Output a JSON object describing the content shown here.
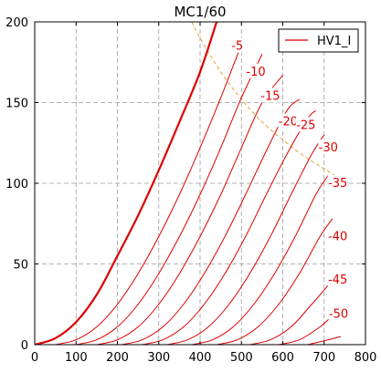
{
  "chart_data": {
    "type": "line",
    "title": "MC1/60",
    "xlabel": "",
    "ylabel": "",
    "xlim": [
      0,
      800
    ],
    "ylim": [
      0,
      200
    ],
    "xticks": [
      0,
      100,
      200,
      300,
      400,
      500,
      600,
      700,
      800
    ],
    "yticks": [
      0,
      50,
      100,
      150,
      200
    ],
    "grid": true,
    "legend": {
      "position": "top-right",
      "entries": [
        "HV1_I"
      ]
    },
    "colors": {
      "curves": "#dd0000",
      "power_limit": "#e8a030",
      "axes": "#000000",
      "grid": "#9a9a9a"
    },
    "series": [
      {
        "label": "",
        "x": [
          0,
          50,
          100,
          150,
          200,
          250,
          300,
          350,
          400,
          440
        ],
        "y": [
          0,
          4,
          14,
          31,
          55,
          80,
          108,
          138,
          169,
          200
        ]
      },
      {
        "label": "-5",
        "x": [
          50,
          100,
          150,
          200,
          250,
          300,
          350,
          400,
          450,
          500
        ],
        "y": [
          0,
          3,
          11,
          25,
          44,
          67,
          93,
          122,
          153,
          186
        ]
      },
      {
        "label": "-10",
        "x": [
          100,
          150,
          200,
          250,
          300,
          350,
          400,
          450,
          500,
          550
        ],
        "y": [
          0,
          3,
          11,
          25,
          44,
          67,
          93,
          122,
          153,
          180
        ]
      },
      {
        "label": "-15",
        "x": [
          150,
          200,
          250,
          300,
          350,
          400,
          450,
          500,
          550,
          600
        ],
        "y": [
          0,
          3,
          11,
          25,
          44,
          67,
          93,
          122,
          150,
          167
        ]
      },
      {
        "label": "-20",
        "x": [
          210,
          260,
          310,
          360,
          410,
          460,
          510,
          560,
          610,
          640
        ],
        "y": [
          0,
          3,
          11,
          25,
          44,
          67,
          93,
          120,
          145,
          152
        ]
      },
      {
        "label": "-25",
        "x": [
          260,
          310,
          360,
          410,
          460,
          510,
          560,
          610,
          660,
          680
        ],
        "y": [
          0,
          3,
          11,
          25,
          44,
          67,
          93,
          118,
          140,
          145
        ]
      },
      {
        "label": "-30",
        "x": [
          320,
          370,
          420,
          470,
          520,
          570,
          620,
          670,
          700
        ],
        "y": [
          0,
          3,
          11,
          25,
          44,
          67,
          93,
          118,
          130
        ]
      },
      {
        "label": "-35",
        "x": [
          380,
          430,
          480,
          530,
          580,
          630,
          680,
          710
        ],
        "y": [
          0,
          3,
          11,
          25,
          44,
          67,
          93,
          105
        ]
      },
      {
        "label": "-40",
        "x": [
          440,
          490,
          540,
          590,
          640,
          690,
          720
        ],
        "y": [
          0,
          3,
          11,
          25,
          44,
          67,
          78
        ]
      },
      {
        "label": "-45",
        "x": [
          520,
          570,
          620,
          670,
          710,
          730
        ],
        "y": [
          0,
          3,
          11,
          25,
          37,
          44
        ]
      },
      {
        "label": "-50",
        "x": [
          590,
          640,
          690,
          720
        ],
        "y": [
          0,
          3,
          11,
          18
        ]
      },
      {
        "label": "",
        "x": [
          660,
          710,
          740
        ],
        "y": [
          0,
          3,
          5
        ]
      }
    ],
    "power_limit_curve": {
      "style": "dashed",
      "x": [
        380,
        400,
        450,
        500,
        550,
        600,
        650,
        700,
        750
      ],
      "y": [
        200,
        190,
        169,
        152,
        138,
        127,
        117,
        109,
        101
      ]
    },
    "curve_labels": [
      {
        "text": "-5",
        "x": 490,
        "y": 185
      },
      {
        "text": "-10",
        "x": 535,
        "y": 169
      },
      {
        "text": "-15",
        "x": 570,
        "y": 154
      },
      {
        "text": "-20",
        "x": 613,
        "y": 138
      },
      {
        "text": "-25",
        "x": 656,
        "y": 136
      },
      {
        "text": "-30",
        "x": 710,
        "y": 122
      },
      {
        "text": "-35",
        "x": 733,
        "y": 100
      },
      {
        "text": "-40",
        "x": 733,
        "y": 67
      },
      {
        "text": "-45",
        "x": 733,
        "y": 40
      },
      {
        "text": "-50",
        "x": 735,
        "y": 19
      }
    ]
  }
}
